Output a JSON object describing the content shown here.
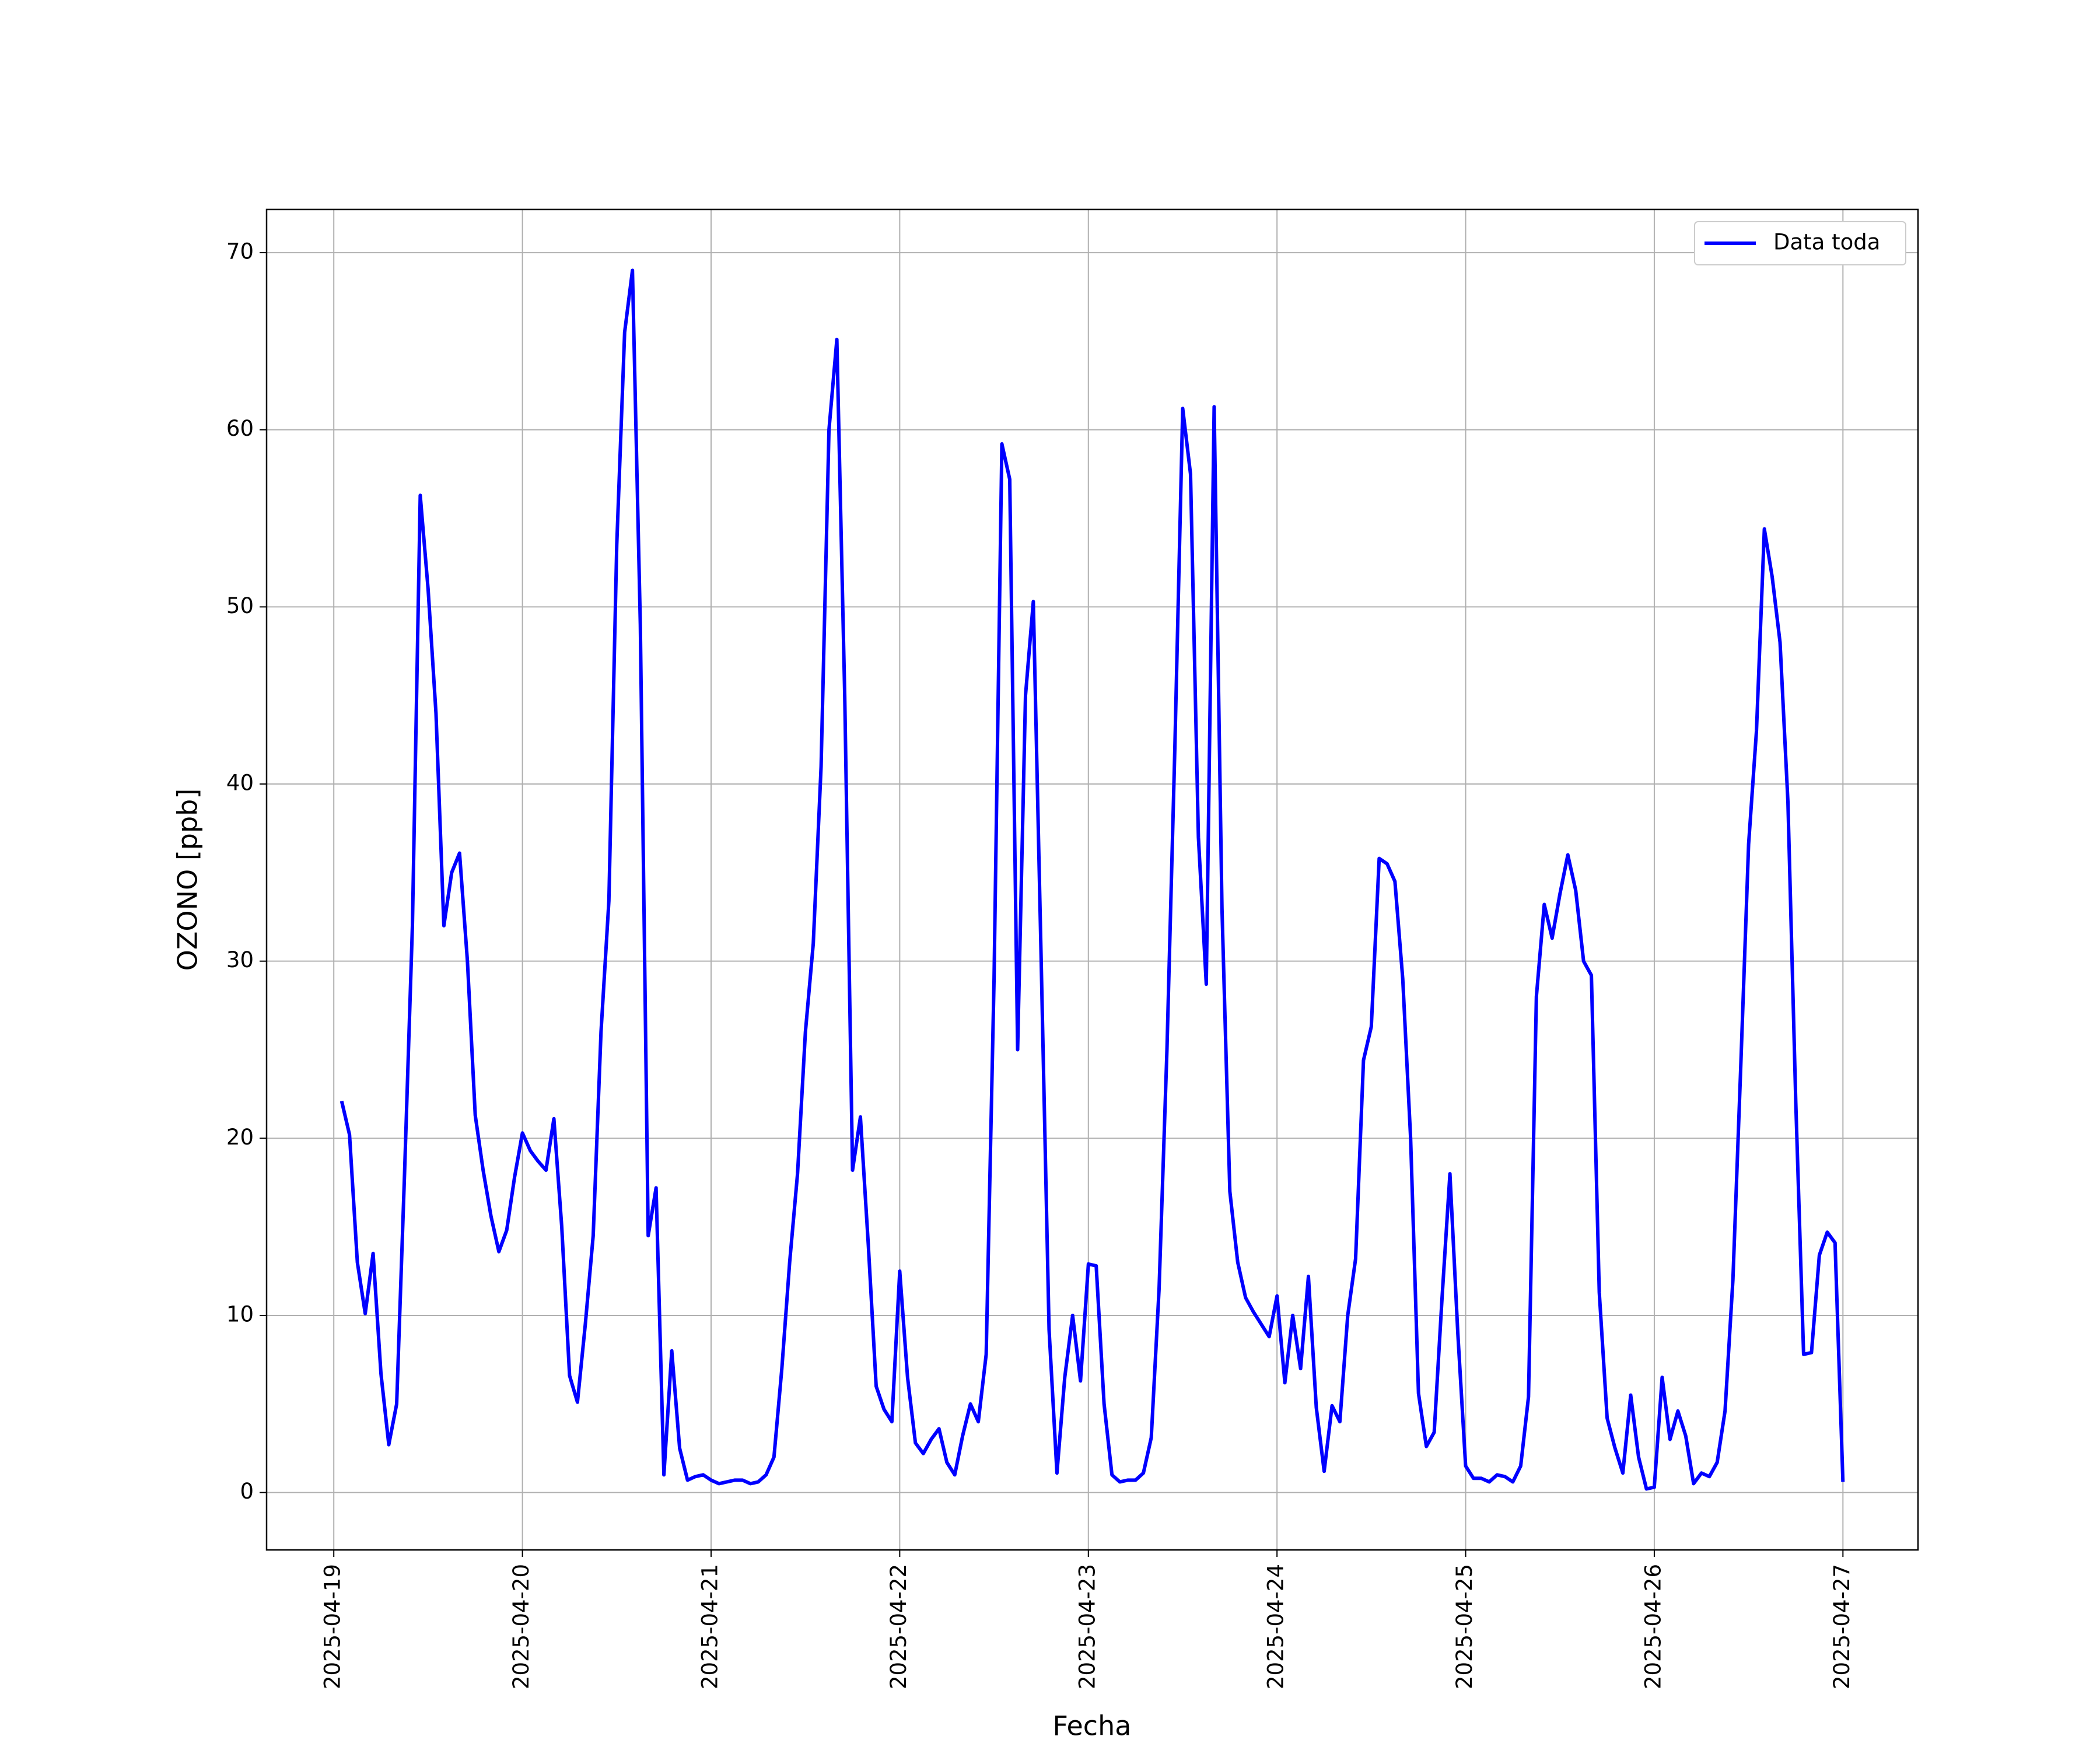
{
  "chart_data": {
    "type": "line",
    "xlabel": "Fecha",
    "ylabel": "OZONO [ppb]",
    "x": [
      "2025-04-19T01:00",
      "2025-04-19T02:00",
      "2025-04-19T03:00",
      "2025-04-19T04:00",
      "2025-04-19T05:00",
      "2025-04-19T06:00",
      "2025-04-19T07:00",
      "2025-04-19T08:00",
      "2025-04-19T09:00",
      "2025-04-19T10:00",
      "2025-04-19T11:00",
      "2025-04-19T12:00",
      "2025-04-19T13:00",
      "2025-04-19T14:00",
      "2025-04-19T15:00",
      "2025-04-19T16:00",
      "2025-04-19T17:00",
      "2025-04-19T18:00",
      "2025-04-19T19:00",
      "2025-04-19T20:00",
      "2025-04-19T21:00",
      "2025-04-19T22:00",
      "2025-04-19T23:00",
      "2025-04-20T00:00",
      "2025-04-20T01:00",
      "2025-04-20T02:00",
      "2025-04-20T03:00",
      "2025-04-20T04:00",
      "2025-04-20T05:00",
      "2025-04-20T06:00",
      "2025-04-20T07:00",
      "2025-04-20T08:00",
      "2025-04-20T09:00",
      "2025-04-20T10:00",
      "2025-04-20T11:00",
      "2025-04-20T12:00",
      "2025-04-20T13:00",
      "2025-04-20T14:00",
      "2025-04-20T15:00",
      "2025-04-20T16:00",
      "2025-04-20T17:00",
      "2025-04-20T18:00",
      "2025-04-20T19:00",
      "2025-04-20T20:00",
      "2025-04-20T21:00",
      "2025-04-20T22:00",
      "2025-04-20T23:00",
      "2025-04-21T00:00",
      "2025-04-21T01:00",
      "2025-04-21T02:00",
      "2025-04-21T03:00",
      "2025-04-21T04:00",
      "2025-04-21T05:00",
      "2025-04-21T06:00",
      "2025-04-21T07:00",
      "2025-04-21T08:00",
      "2025-04-21T09:00",
      "2025-04-21T10:00",
      "2025-04-21T11:00",
      "2025-04-21T12:00",
      "2025-04-21T13:00",
      "2025-04-21T14:00",
      "2025-04-21T15:00",
      "2025-04-21T16:00",
      "2025-04-21T17:00",
      "2025-04-21T18:00",
      "2025-04-21T19:00",
      "2025-04-21T20:00",
      "2025-04-21T21:00",
      "2025-04-21T22:00",
      "2025-04-21T23:00",
      "2025-04-22T00:00",
      "2025-04-22T01:00",
      "2025-04-22T02:00",
      "2025-04-22T03:00",
      "2025-04-22T04:00",
      "2025-04-22T05:00",
      "2025-04-22T06:00",
      "2025-04-22T07:00",
      "2025-04-22T08:00",
      "2025-04-22T09:00",
      "2025-04-22T10:00",
      "2025-04-22T11:00",
      "2025-04-22T12:00",
      "2025-04-22T13:00",
      "2025-04-22T14:00",
      "2025-04-22T15:00",
      "2025-04-22T16:00",
      "2025-04-22T17:00",
      "2025-04-22T18:00",
      "2025-04-22T19:00",
      "2025-04-22T20:00",
      "2025-04-22T21:00",
      "2025-04-22T22:00",
      "2025-04-22T23:00",
      "2025-04-23T00:00",
      "2025-04-23T01:00",
      "2025-04-23T02:00",
      "2025-04-23T03:00",
      "2025-04-23T04:00",
      "2025-04-23T05:00",
      "2025-04-23T06:00",
      "2025-04-23T07:00",
      "2025-04-23T08:00",
      "2025-04-23T09:00",
      "2025-04-23T10:00",
      "2025-04-23T11:00",
      "2025-04-23T12:00",
      "2025-04-23T13:00",
      "2025-04-23T14:00",
      "2025-04-23T15:00",
      "2025-04-23T16:00",
      "2025-04-23T17:00",
      "2025-04-23T18:00",
      "2025-04-23T19:00",
      "2025-04-23T20:00",
      "2025-04-23T21:00",
      "2025-04-23T22:00",
      "2025-04-23T23:00",
      "2025-04-24T00:00",
      "2025-04-24T01:00",
      "2025-04-24T02:00",
      "2025-04-24T03:00",
      "2025-04-24T04:00",
      "2025-04-24T05:00",
      "2025-04-24T06:00",
      "2025-04-24T07:00",
      "2025-04-24T08:00",
      "2025-04-24T09:00",
      "2025-04-24T10:00",
      "2025-04-24T11:00",
      "2025-04-24T12:00",
      "2025-04-24T13:00",
      "2025-04-24T14:00",
      "2025-04-24T15:00",
      "2025-04-24T16:00",
      "2025-04-24T17:00",
      "2025-04-24T18:00",
      "2025-04-24T19:00",
      "2025-04-24T20:00",
      "2025-04-24T21:00",
      "2025-04-24T22:00",
      "2025-04-24T23:00",
      "2025-04-25T00:00",
      "2025-04-25T01:00",
      "2025-04-25T02:00",
      "2025-04-25T03:00",
      "2025-04-25T04:00",
      "2025-04-25T05:00",
      "2025-04-25T06:00",
      "2025-04-25T07:00",
      "2025-04-25T08:00",
      "2025-04-25T09:00",
      "2025-04-25T10:00",
      "2025-04-25T11:00",
      "2025-04-25T12:00",
      "2025-04-25T13:00",
      "2025-04-25T14:00",
      "2025-04-25T15:00",
      "2025-04-25T16:00",
      "2025-04-25T17:00",
      "2025-04-25T18:00",
      "2025-04-25T19:00",
      "2025-04-25T20:00",
      "2025-04-25T21:00",
      "2025-04-25T22:00",
      "2025-04-25T23:00",
      "2025-04-26T00:00",
      "2025-04-26T01:00",
      "2025-04-26T02:00",
      "2025-04-26T03:00",
      "2025-04-26T04:00",
      "2025-04-26T05:00",
      "2025-04-26T06:00",
      "2025-04-26T07:00",
      "2025-04-26T08:00",
      "2025-04-26T09:00",
      "2025-04-26T10:00",
      "2025-04-26T11:00",
      "2025-04-26T12:00",
      "2025-04-26T13:00",
      "2025-04-26T14:00",
      "2025-04-26T15:00",
      "2025-04-26T16:00",
      "2025-04-26T17:00",
      "2025-04-26T18:00",
      "2025-04-26T19:00",
      "2025-04-26T20:00",
      "2025-04-26T21:00",
      "2025-04-26T22:00",
      "2025-04-26T23:00",
      "2025-04-27T00:00"
    ],
    "series": [
      {
        "name": "Data toda",
        "color": "#0000ff",
        "values": [
          22.1,
          20.2,
          13,
          10.1,
          13.5,
          6.7,
          2.7,
          5,
          18,
          32,
          56.3,
          51,
          44,
          32,
          35,
          36.1,
          30,
          21.3,
          18.2,
          15.6,
          13.6,
          14.8,
          17.8,
          20.3,
          19.3,
          18.7,
          18.2,
          21.1,
          15,
          6.6,
          5.1,
          9.5,
          14.5,
          26,
          33.4,
          53.5,
          65.5,
          69,
          49,
          14.5,
          17.2,
          1,
          8,
          2.5,
          0.7,
          0.9,
          1,
          0.7,
          0.5,
          0.6,
          0.7,
          0.7,
          0.5,
          0.6,
          1,
          2,
          7,
          13,
          18,
          26,
          31,
          41,
          60,
          65.1,
          45,
          18.2,
          21.2,
          14,
          6,
          4.7,
          4,
          12.5,
          6.5,
          2.8,
          2.2,
          3,
          3.6,
          1.7,
          1,
          3.2,
          5,
          4,
          7.8,
          29,
          59.2,
          57.2,
          25,
          45,
          50.3,
          30,
          9.2,
          1.1,
          6.5,
          10,
          6.3,
          12.9,
          12.8,
          5,
          1,
          0.6,
          0.7,
          0.7,
          1.1,
          3.1,
          11.5,
          25,
          42,
          61.2,
          57.5,
          37,
          28.7,
          61.3,
          33,
          17,
          13,
          11,
          10.2,
          9.5,
          8.8,
          11.1,
          6.2,
          10,
          7,
          12.2,
          4.8,
          1.2,
          4.9,
          4,
          10,
          13.2,
          24.4,
          26.3,
          35.8,
          35.5,
          34.5,
          29,
          20,
          5.6,
          2.6,
          3.4,
          11,
          18,
          9,
          1.5,
          0.8,
          0.8,
          0.6,
          1,
          0.9,
          0.6,
          1.5,
          5.4,
          28,
          33.2,
          31.3,
          33.8,
          36,
          34,
          30,
          29.2,
          11.3,
          4.2,
          2.5,
          1.1,
          5.5,
          2,
          0.2,
          0.3,
          6.5,
          3,
          4.6,
          3.2,
          0.5,
          1.1,
          0.9,
          1.7,
          4.6,
          12,
          24,
          36.6,
          43,
          54.4,
          51.7,
          48,
          39,
          22,
          7.8,
          7.9,
          13.4,
          14.7,
          14.1,
          0.6
        ]
      }
    ],
    "xlim": [
      "2025-04-18T15:27",
      "2025-04-27T09:33"
    ],
    "xticks": [
      {
        "value": "2025-04-19T00:00",
        "label": "2025-04-19"
      },
      {
        "value": "2025-04-20T00:00",
        "label": "2025-04-20"
      },
      {
        "value": "2025-04-21T00:00",
        "label": "2025-04-21"
      },
      {
        "value": "2025-04-22T00:00",
        "label": "2025-04-22"
      },
      {
        "value": "2025-04-23T00:00",
        "label": "2025-04-23"
      },
      {
        "value": "2025-04-24T00:00",
        "label": "2025-04-24"
      },
      {
        "value": "2025-04-25T00:00",
        "label": "2025-04-25"
      },
      {
        "value": "2025-04-26T00:00",
        "label": "2025-04-26"
      },
      {
        "value": "2025-04-27T00:00",
        "label": "2025-04-27"
      }
    ],
    "ylim": [
      -3.24,
      72.44
    ],
    "yticks": [
      0,
      10,
      20,
      30,
      40,
      50,
      60,
      70
    ],
    "grid": true,
    "legend": "upper right"
  }
}
